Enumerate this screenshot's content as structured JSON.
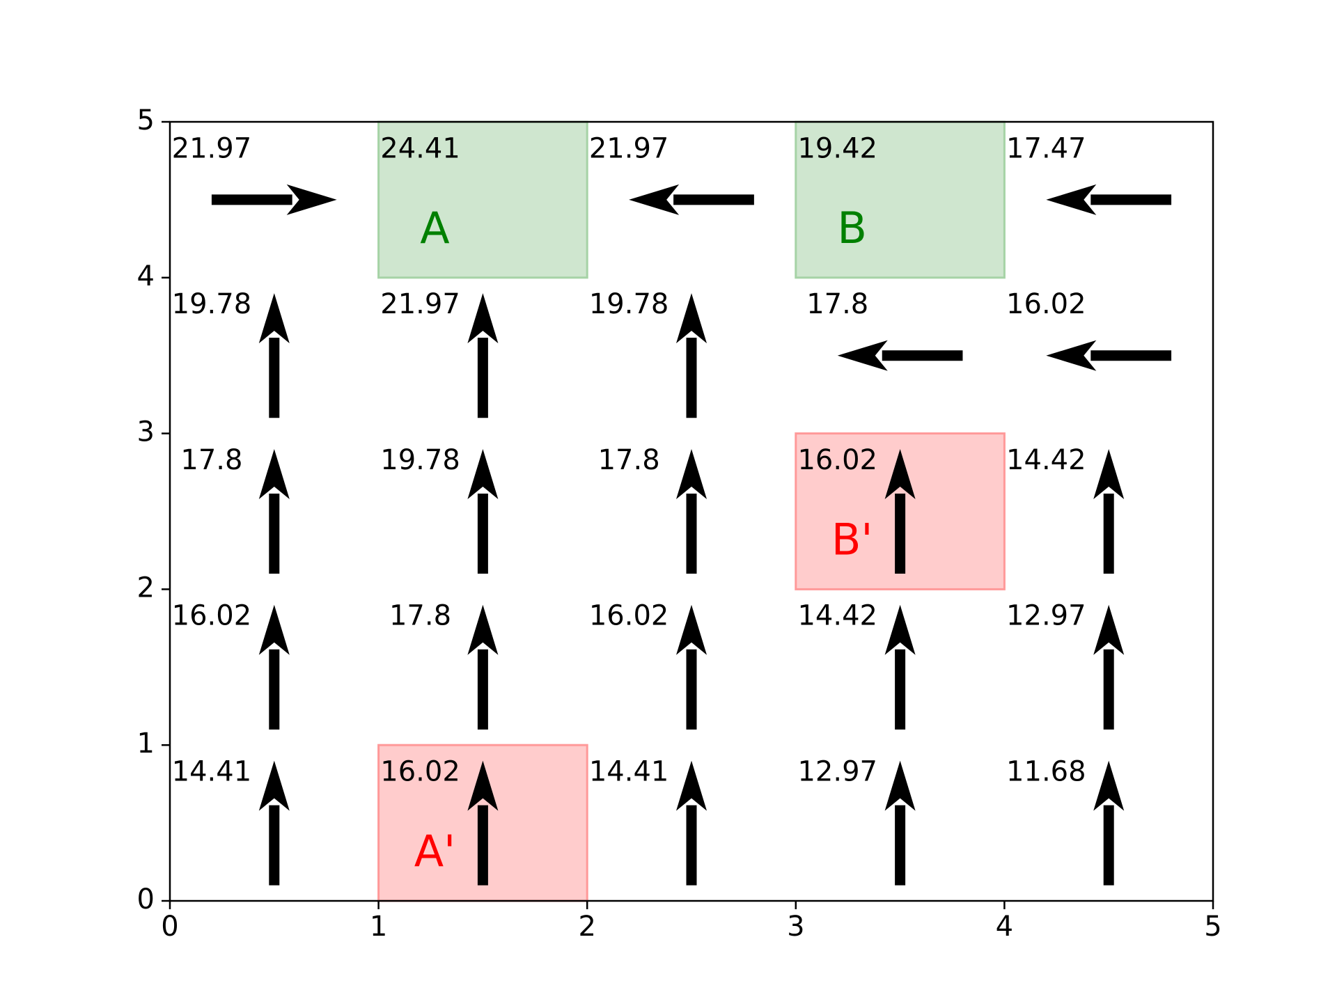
{
  "chart_data": {
    "type": "heatmap",
    "title": "",
    "xlabel": "",
    "ylabel": "",
    "xlim": [
      0,
      5
    ],
    "ylim": [
      0,
      5
    ],
    "grid": false,
    "x_ticks": [
      "0",
      "1",
      "2",
      "3",
      "4",
      "5"
    ],
    "y_ticks": [
      "0",
      "1",
      "2",
      "3",
      "4",
      "5"
    ],
    "cells": [
      {
        "col": 0,
        "row": 4,
        "value": "21.97",
        "action": "right"
      },
      {
        "col": 1,
        "row": 4,
        "value": "24.41",
        "action": null
      },
      {
        "col": 2,
        "row": 4,
        "value": "21.97",
        "action": "left"
      },
      {
        "col": 3,
        "row": 4,
        "value": "19.42",
        "action": null
      },
      {
        "col": 4,
        "row": 4,
        "value": "17.47",
        "action": "left"
      },
      {
        "col": 0,
        "row": 3,
        "value": "19.78",
        "action": "up"
      },
      {
        "col": 1,
        "row": 3,
        "value": "21.97",
        "action": "up"
      },
      {
        "col": 2,
        "row": 3,
        "value": "19.78",
        "action": "up"
      },
      {
        "col": 3,
        "row": 3,
        "value": "17.8",
        "action": "left"
      },
      {
        "col": 4,
        "row": 3,
        "value": "16.02",
        "action": "left"
      },
      {
        "col": 0,
        "row": 2,
        "value": "17.8",
        "action": "up"
      },
      {
        "col": 1,
        "row": 2,
        "value": "19.78",
        "action": "up"
      },
      {
        "col": 2,
        "row": 2,
        "value": "17.8",
        "action": "up"
      },
      {
        "col": 3,
        "row": 2,
        "value": "16.02",
        "action": "up"
      },
      {
        "col": 4,
        "row": 2,
        "value": "14.42",
        "action": "up"
      },
      {
        "col": 0,
        "row": 1,
        "value": "16.02",
        "action": "up"
      },
      {
        "col": 1,
        "row": 1,
        "value": "17.8",
        "action": "up"
      },
      {
        "col": 2,
        "row": 1,
        "value": "16.02",
        "action": "up"
      },
      {
        "col": 3,
        "row": 1,
        "value": "14.42",
        "action": "up"
      },
      {
        "col": 4,
        "row": 1,
        "value": "12.97",
        "action": "up"
      },
      {
        "col": 0,
        "row": 0,
        "value": "14.41",
        "action": "up"
      },
      {
        "col": 1,
        "row": 0,
        "value": "16.02",
        "action": "up"
      },
      {
        "col": 2,
        "row": 0,
        "value": "14.41",
        "action": "up"
      },
      {
        "col": 3,
        "row": 0,
        "value": "12.97",
        "action": "up"
      },
      {
        "col": 4,
        "row": 0,
        "value": "11.68",
        "action": "up"
      }
    ],
    "regions": [
      {
        "label": "A",
        "col": 1,
        "row": 4,
        "fill": "#cfe6cf",
        "stroke": "#a6d3a6",
        "text_color": "#008000"
      },
      {
        "label": "B",
        "col": 3,
        "row": 4,
        "fill": "#cfe6cf",
        "stroke": "#a6d3a6",
        "text_color": "#008000"
      },
      {
        "label": "B'",
        "col": 3,
        "row": 2,
        "fill": "#ffcccc",
        "stroke": "#ff9999",
        "text_color": "#ff0000"
      },
      {
        "label": "A'",
        "col": 1,
        "row": 0,
        "fill": "#ffcccc",
        "stroke": "#ff9999",
        "text_color": "#ff0000"
      }
    ],
    "colors": {
      "arrow": "#000000",
      "axis": "#000000",
      "background": "#ffffff"
    }
  }
}
